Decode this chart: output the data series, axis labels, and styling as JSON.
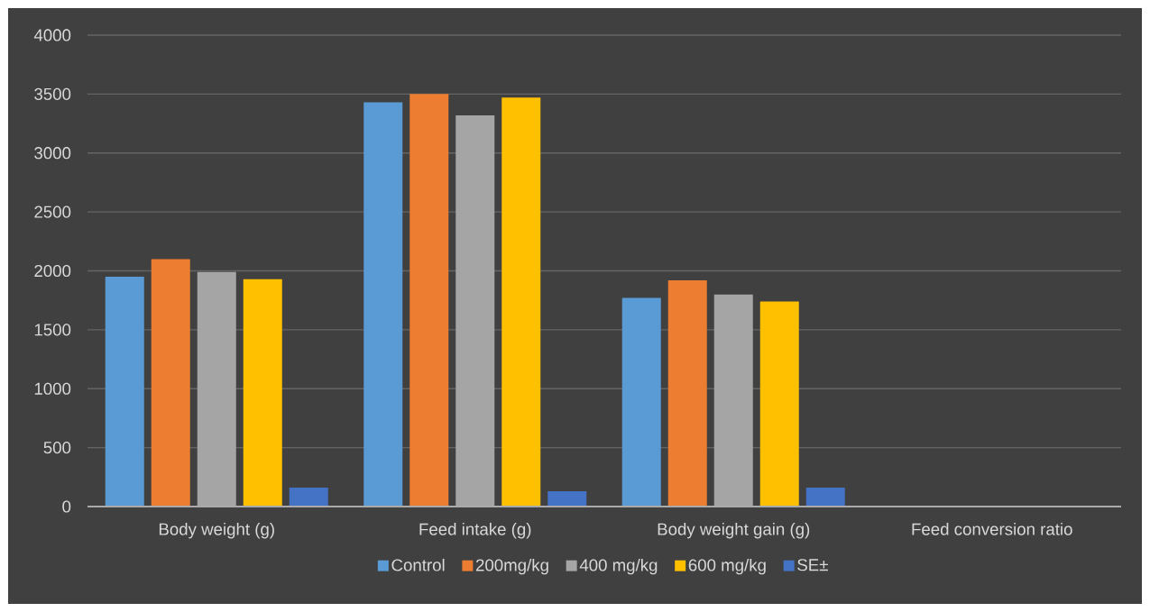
{
  "chart_data": {
    "type": "bar",
    "categories": [
      "Body weight (g)",
      "Feed intake (g)",
      "Body weight gain (g)",
      "Feed conversion ratio"
    ],
    "series": [
      {
        "name": "Control",
        "color": "#5b9bd5",
        "values": [
          1950,
          3430,
          1770,
          null
        ]
      },
      {
        "name": "200mg/kg",
        "color": "#ed7d31",
        "values": [
          2100,
          3500,
          1920,
          null
        ]
      },
      {
        "name": "400 mg/kg",
        "color": "#a5a5a5",
        "values": [
          1990,
          3320,
          1800,
          null
        ]
      },
      {
        "name": "600 mg/kg",
        "color": "#ffc000",
        "values": [
          1930,
          3470,
          1740,
          null
        ]
      },
      {
        "name": "SE±",
        "color": "#4472c4",
        "values": [
          160,
          130,
          160,
          null
        ]
      }
    ],
    "ylim": [
      0,
      4000
    ],
    "yticks": [
      0,
      500,
      1000,
      1500,
      2000,
      2500,
      3000,
      3500,
      4000
    ],
    "grid": "y",
    "legend": "bottom"
  }
}
